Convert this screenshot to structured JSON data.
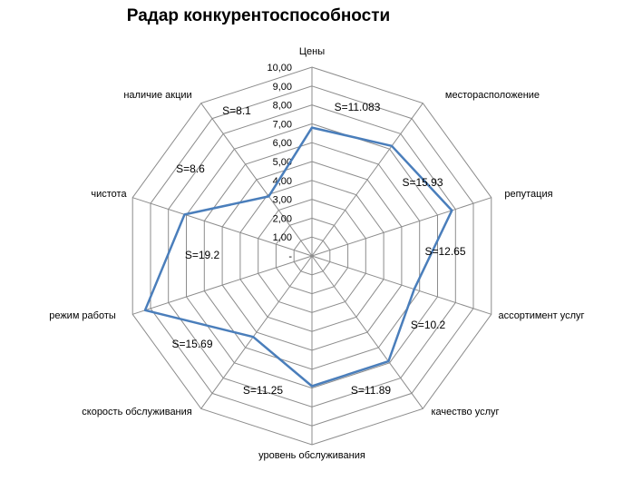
{
  "chart_data": {
    "type": "radar",
    "title": "Радар конкурентоспособности",
    "categories": [
      "Цены",
      "месторасположение",
      "репутация",
      "ассортимент услуг",
      "качество услуг",
      "уровень обслуживания",
      "скорость обслуживания",
      "режим работы",
      "чистота",
      "наличие акции"
    ],
    "series": [
      {
        "values": [
          6.8,
          7.2,
          7.8,
          5.7,
          6.9,
          6.9,
          5.3,
          9.3,
          7.1,
          3.9
        ]
      }
    ],
    "rlim": [
      0,
      10
    ],
    "ticks": [
      "-",
      "1,00",
      "2,00",
      "3,00",
      "4,00",
      "5,00",
      "6,00",
      "7,00",
      "8,00",
      "9,00",
      "10,00"
    ],
    "annotations": [
      "S=11.083",
      "S=15.93",
      "S=12.65",
      "S=10.2",
      "S=11.89",
      "S=11.25",
      "S=15.69",
      "S=19.2",
      "S=8.6",
      "S=8.1"
    ],
    "series_color": "#4a7ebb",
    "grid_color": "#8c8c8c",
    "grid": true,
    "legend": "none"
  }
}
